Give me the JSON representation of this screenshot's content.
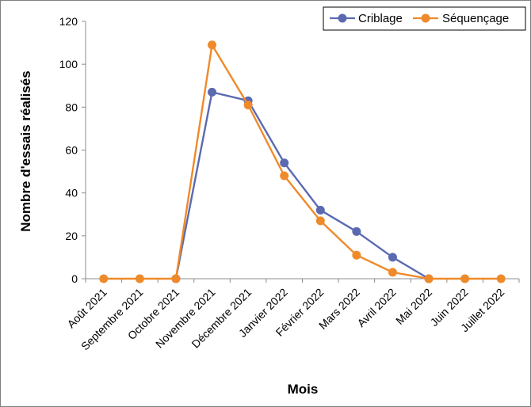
{
  "chart_data": {
    "type": "line",
    "title": "",
    "xlabel": "Mois",
    "ylabel": "Nombre d'essais réalisés",
    "ylim": [
      0,
      120
    ],
    "yticks": [
      0,
      20,
      40,
      60,
      80,
      100,
      120
    ],
    "grid": false,
    "legend_position": "top-right",
    "categories": [
      "Août 2021",
      "Septembre 2021",
      "Octobre 2021",
      "Novembre 2021",
      "Décembre 2021",
      "Janvier 2022",
      "Février 2022",
      "Mars 2022",
      "Avril 2022",
      "Mai 2022",
      "Juin 2022",
      "Juillet 2022"
    ],
    "series": [
      {
        "name": "Criblage",
        "color": "#5b6ab0",
        "values": [
          null,
          null,
          0,
          87,
          83,
          54,
          32,
          22,
          10,
          0,
          null,
          null
        ]
      },
      {
        "name": "Séquençage",
        "color": "#ef8a2a",
        "values": [
          0,
          0,
          0,
          109,
          81,
          48,
          27,
          11,
          3,
          0,
          0,
          0
        ]
      }
    ]
  }
}
